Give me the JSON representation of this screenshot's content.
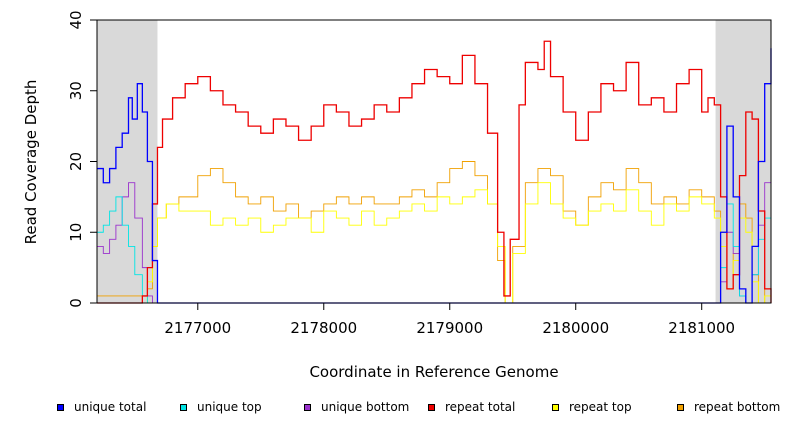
{
  "chart_data": {
    "type": "line",
    "title": "",
    "xlabel": "Coordinate in Reference Genome",
    "ylabel": "Read Coverage Depth",
    "xlim": [
      2176200,
      2181550
    ],
    "ylim": [
      0,
      40
    ],
    "x_ticks": [
      2177000,
      2178000,
      2179000,
      2180000,
      2181000
    ],
    "y_ticks": [
      0,
      10,
      20,
      30,
      40
    ],
    "shaded_regions": [
      [
        2176200,
        2176680
      ],
      [
        2181110,
        2181550
      ]
    ],
    "shade_color": "#d9d9d9",
    "grid": false,
    "legend_position": "bottom",
    "series": [
      {
        "name": "unique total",
        "color": "#0000ff",
        "x": [
          2176200,
          2176250,
          2176300,
          2176350,
          2176400,
          2176450,
          2176480,
          2176520,
          2176560,
          2176600,
          2176640,
          2176680,
          2176700,
          2176750,
          2181050,
          2181100,
          2181150,
          2181200,
          2181250,
          2181300,
          2181350,
          2181400,
          2181450,
          2181500,
          2181550
        ],
        "y": [
          19,
          17,
          19,
          22,
          24,
          29,
          26,
          31,
          27,
          20,
          6,
          0,
          0,
          0,
          0,
          0,
          10,
          25,
          15,
          2,
          0,
          8,
          20,
          31,
          36
        ]
      },
      {
        "name": "unique top",
        "color": "#00e5e5",
        "x": [
          2176200,
          2176250,
          2176300,
          2176350,
          2176400,
          2176450,
          2176500,
          2176560,
          2176600,
          2176640,
          2176680,
          2181100,
          2181150,
          2181200,
          2181250,
          2181300,
          2181350,
          2181400,
          2181450,
          2181500,
          2181550
        ],
        "y": [
          10,
          11,
          13,
          15,
          11,
          8,
          4,
          1,
          0,
          0,
          0,
          0,
          5,
          14,
          8,
          1,
          0,
          4,
          9,
          12,
          14
        ]
      },
      {
        "name": "unique bottom",
        "color": "#9a32cd",
        "x": [
          2176200,
          2176250,
          2176300,
          2176350,
          2176400,
          2176450,
          2176500,
          2176560,
          2176600,
          2176640,
          2176680,
          2181100,
          2181150,
          2181200,
          2181250,
          2181300,
          2181350,
          2181400,
          2181450,
          2181500,
          2181550
        ],
        "y": [
          8,
          7,
          9,
          11,
          15,
          17,
          12,
          5,
          1,
          0,
          0,
          0,
          3,
          10,
          7,
          1,
          0,
          4,
          11,
          17,
          21
        ]
      },
      {
        "name": "repeat total",
        "color": "#ee0000",
        "x": [
          2176200,
          2176500,
          2176560,
          2176600,
          2176640,
          2176680,
          2176720,
          2176800,
          2176900,
          2177000,
          2177100,
          2177200,
          2177300,
          2177400,
          2177500,
          2177600,
          2177700,
          2177800,
          2177900,
          2178000,
          2178100,
          2178200,
          2178300,
          2178400,
          2178500,
          2178600,
          2178700,
          2178800,
          2178900,
          2179000,
          2179100,
          2179200,
          2179300,
          2179380,
          2179430,
          2179480,
          2179550,
          2179600,
          2179700,
          2179750,
          2179800,
          2179900,
          2180000,
          2180100,
          2180200,
          2180300,
          2180400,
          2180500,
          2180600,
          2180700,
          2180800,
          2180900,
          2181000,
          2181050,
          2181100,
          2181150,
          2181200,
          2181250,
          2181300,
          2181350,
          2181400,
          2181450,
          2181500,
          2181550
        ],
        "y": [
          0,
          0,
          1,
          5,
          14,
          22,
          26,
          29,
          31,
          32,
          30,
          28,
          27,
          25,
          24,
          26,
          25,
          23,
          25,
          28,
          27,
          25,
          26,
          28,
          27,
          29,
          31,
          33,
          32,
          31,
          35,
          31,
          24,
          10,
          1,
          9,
          28,
          34,
          33,
          37,
          32,
          27,
          23,
          27,
          31,
          30,
          34,
          28,
          29,
          27,
          31,
          33,
          27,
          29,
          28,
          15,
          2,
          4,
          18,
          27,
          26,
          13,
          2,
          0
        ]
      },
      {
        "name": "repeat top",
        "color": "#ffff00",
        "x": [
          2176200,
          2176500,
          2176560,
          2176600,
          2176640,
          2176680,
          2176750,
          2176850,
          2177000,
          2177100,
          2177200,
          2177300,
          2177400,
          2177500,
          2177600,
          2177700,
          2177800,
          2177900,
          2178000,
          2178100,
          2178200,
          2178300,
          2178400,
          2178500,
          2178600,
          2178700,
          2178800,
          2178900,
          2179000,
          2179100,
          2179200,
          2179300,
          2179380,
          2179440,
          2179500,
          2179600,
          2179700,
          2179800,
          2179900,
          2180000,
          2180100,
          2180200,
          2180300,
          2180400,
          2180500,
          2180600,
          2180700,
          2180800,
          2180900,
          2181000,
          2181100,
          2181150,
          2181200,
          2181250,
          2181300,
          2181350,
          2181400,
          2181450,
          2181500,
          2181550
        ],
        "y": [
          0,
          0,
          0,
          3,
          8,
          12,
          14,
          13,
          13,
          11,
          12,
          11,
          12,
          10,
          11,
          12,
          12,
          10,
          13,
          12,
          11,
          13,
          11,
          12,
          13,
          14,
          13,
          15,
          14,
          15,
          16,
          14,
          8,
          0,
          7,
          14,
          17,
          14,
          12,
          11,
          13,
          14,
          13,
          16,
          13,
          11,
          14,
          13,
          15,
          14,
          12,
          8,
          2,
          6,
          12,
          10,
          3,
          0,
          1,
          0
        ]
      },
      {
        "name": "repeat bottom",
        "color": "#f0a000",
        "x": [
          2176200,
          2176500,
          2176560,
          2176600,
          2176640,
          2176680,
          2176750,
          2176850,
          2177000,
          2177100,
          2177200,
          2177300,
          2177400,
          2177500,
          2177600,
          2177700,
          2177800,
          2177900,
          2178000,
          2178100,
          2178200,
          2178300,
          2178400,
          2178500,
          2178600,
          2178700,
          2178800,
          2178900,
          2179000,
          2179100,
          2179200,
          2179300,
          2179380,
          2179440,
          2179500,
          2179600,
          2179700,
          2179800,
          2179900,
          2180000,
          2180100,
          2180200,
          2180300,
          2180400,
          2180500,
          2180600,
          2180700,
          2180800,
          2180900,
          2181000,
          2181100,
          2181150,
          2181200,
          2181250,
          2181300,
          2181350,
          2181400,
          2181450,
          2181500,
          2181550
        ],
        "y": [
          1,
          1,
          1,
          2,
          8,
          12,
          14,
          15,
          18,
          19,
          17,
          15,
          14,
          15,
          13,
          14,
          12,
          13,
          14,
          15,
          14,
          15,
          14,
          14,
          15,
          16,
          15,
          17,
          19,
          20,
          18,
          14,
          6,
          0,
          8,
          17,
          19,
          18,
          13,
          11,
          15,
          17,
          16,
          19,
          17,
          14,
          15,
          14,
          16,
          15,
          13,
          10,
          2,
          7,
          14,
          12,
          4,
          0,
          2,
          0
        ]
      }
    ]
  }
}
